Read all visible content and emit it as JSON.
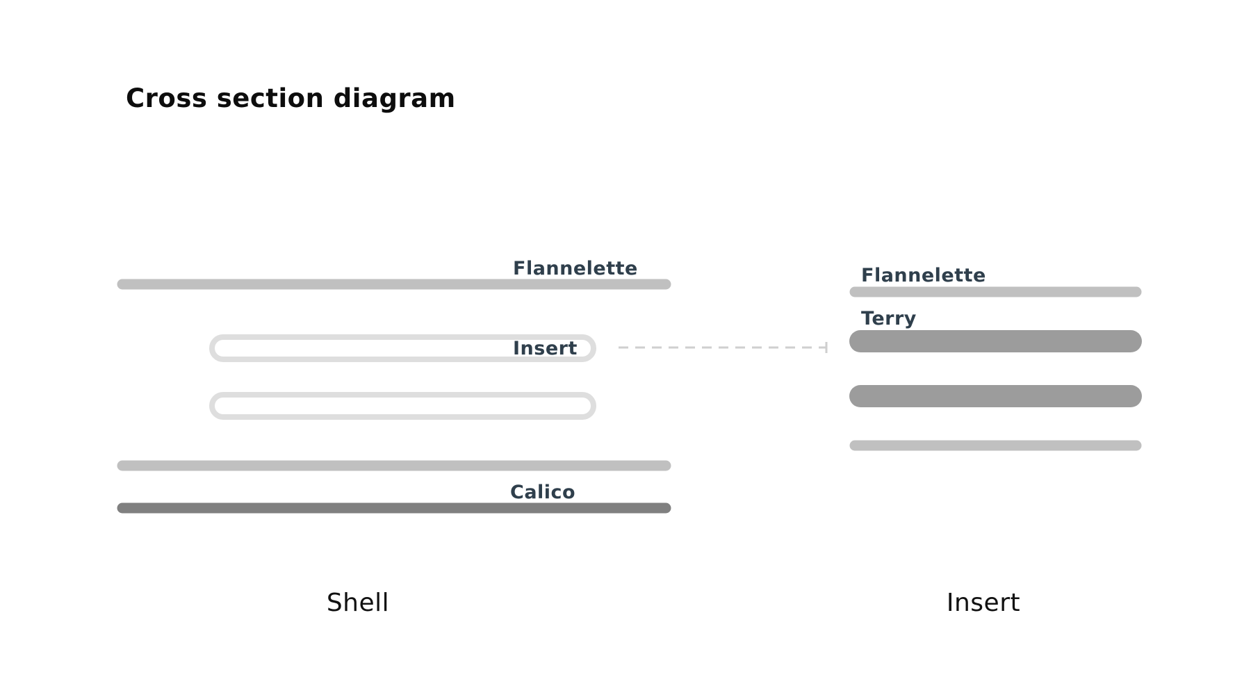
{
  "title": "Cross section diagram",
  "shell": {
    "caption": "Shell",
    "labels": {
      "top": "Flannelette",
      "middle": "Insert",
      "bottom": "Calico"
    }
  },
  "insert": {
    "caption": "Insert",
    "labels": {
      "top": "Flannelette",
      "second": "Terry"
    }
  },
  "colors": {
    "flannelette": "#c0c0c0",
    "terry": "#9c9c9c",
    "calico": "#808080",
    "insert_outline": "#dedede",
    "connector": "#cfcfcf",
    "label": "#2f3f4c"
  }
}
